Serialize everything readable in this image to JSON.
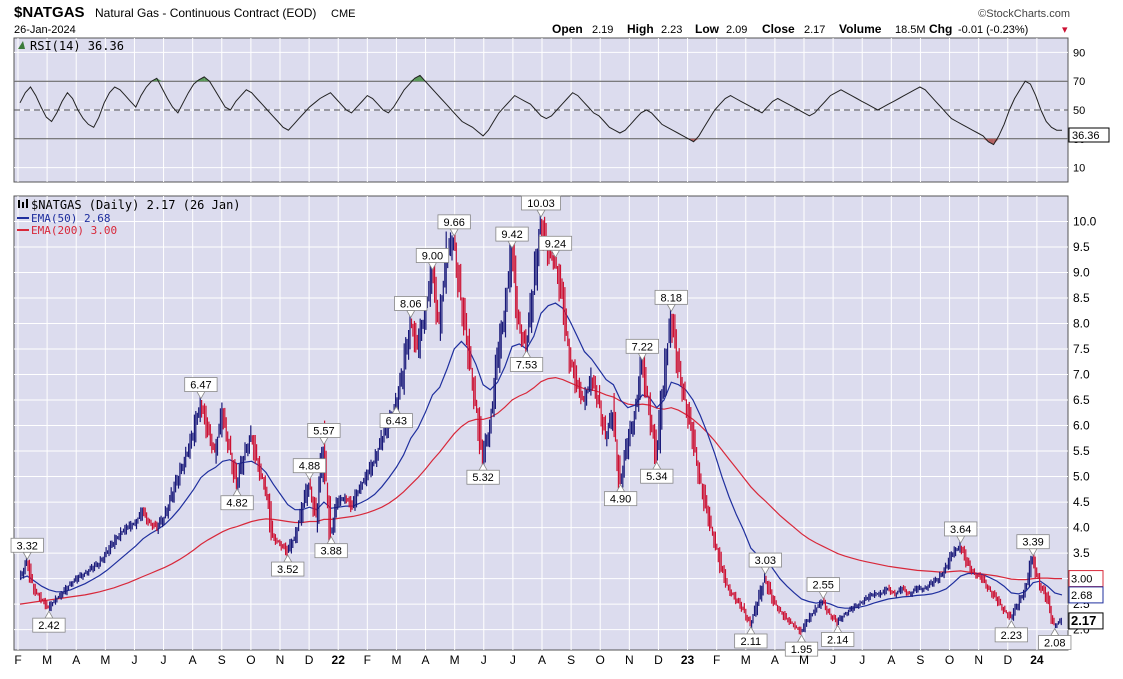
{
  "header": {
    "symbol": "$NATGAS",
    "description": "Natural Gas - Continuous Contract (EOD)",
    "exchange": "CME",
    "date": "26-Jan-2024",
    "watermark": "©StockCharts.com",
    "quote": {
      "open_label": "Open",
      "open": "2.19",
      "high_label": "High",
      "high": "2.23",
      "low_label": "Low",
      "low": "2.09",
      "close_label": "Close",
      "close": "2.17",
      "volume_label": "Volume",
      "volume": "18.5M",
      "chg_label": "Chg",
      "chg": "-0.01 (-0.23%)",
      "chg_arrow": "▾"
    }
  },
  "colors": {
    "panel_bg": "#dcdcee",
    "grid": "#ffffff",
    "price_line": "#1a1a1a",
    "up_bar": "#1a1a7a",
    "down_bar": "#cc1133",
    "ema50": "#1f2f9e",
    "ema200": "#d8283a",
    "rsi_line": "#222222",
    "rsi_overbought_fill": "#5a9a5a",
    "rsi_oversold_fill": "#b36060"
  },
  "chart_data": [
    {
      "type": "line",
      "panel": "RSI",
      "label": "RSI(14) 36.36",
      "last_value": 36.36,
      "ylim": [
        0,
        100
      ],
      "yticks": [
        10,
        30,
        50,
        70,
        90
      ],
      "reference_lines": [
        30,
        50,
        70
      ],
      "series": [
        {
          "name": "RSI(14)",
          "values": [
            55,
            62,
            66,
            60,
            52,
            45,
            42,
            48,
            56,
            62,
            58,
            50,
            44,
            40,
            38,
            45,
            55,
            62,
            66,
            64,
            60,
            56,
            52,
            60,
            66,
            70,
            72,
            65,
            58,
            52,
            48,
            55,
            62,
            68,
            71,
            73,
            70,
            64,
            58,
            52,
            50,
            56,
            60,
            64,
            62,
            58,
            54,
            50,
            46,
            42,
            38,
            36,
            40,
            44,
            48,
            52,
            55,
            58,
            60,
            62,
            58,
            54,
            50,
            48,
            52,
            56,
            60,
            58,
            54,
            50,
            48,
            52,
            58,
            64,
            68,
            72,
            74,
            70,
            66,
            62,
            58,
            54,
            50,
            46,
            42,
            40,
            38,
            35,
            32,
            36,
            42,
            48,
            52,
            56,
            60,
            58,
            56,
            54,
            50,
            46,
            44,
            46,
            50,
            54,
            58,
            62,
            60,
            56,
            52,
            48,
            46,
            42,
            38,
            36,
            34,
            36,
            40,
            44,
            48,
            50,
            48,
            44,
            40,
            38,
            36,
            34,
            32,
            30,
            28,
            32,
            38,
            44,
            50,
            54,
            58,
            60,
            58,
            56,
            54,
            52,
            50,
            48,
            52,
            56,
            58,
            56,
            54,
            52,
            50,
            48,
            46,
            48,
            52,
            56,
            60,
            62,
            64,
            62,
            60,
            58,
            56,
            54,
            52,
            50,
            52,
            54,
            56,
            58,
            60,
            62,
            64,
            66,
            64,
            60,
            56,
            52,
            48,
            44,
            42,
            40,
            38,
            36,
            34,
            32,
            28,
            26,
            32,
            40,
            50,
            58,
            64,
            70,
            68,
            60,
            50,
            42,
            38,
            36,
            36
          ]
        }
      ]
    },
    {
      "type": "line",
      "panel": "Price",
      "title": "$NATGAS (Daily) 2.17 (26 Jan)",
      "last_close": 2.17,
      "ylim": [
        1.6,
        10.5
      ],
      "yticks": [
        2.0,
        2.5,
        3.0,
        3.5,
        4.0,
        4.5,
        5.0,
        5.5,
        6.0,
        6.5,
        7.0,
        7.5,
        8.0,
        8.5,
        9.0,
        9.5,
        10.0
      ],
      "ytick_labels": [
        "2.0",
        "2.5",
        "3.0",
        "3.5",
        "4.0",
        "4.5",
        "5.0",
        "5.5",
        "6.0",
        "6.5",
        "7.0",
        "7.5",
        "8.0",
        "8.5",
        "9.0",
        "9.5",
        "10.0"
      ],
      "x_month_labels": [
        "F",
        "M",
        "A",
        "M",
        "J",
        "J",
        "A",
        "S",
        "O",
        "N",
        "D",
        "22",
        "F",
        "M",
        "A",
        "M",
        "J",
        "J",
        "A",
        "S",
        "O",
        "N",
        "D",
        "23",
        "F",
        "M",
        "A",
        "M",
        "J",
        "J",
        "A",
        "S",
        "O",
        "N",
        "D",
        "24"
      ],
      "series": [
        {
          "name": "$NATGAS",
          "values": [
            3.0,
            3.32,
            2.8,
            2.6,
            2.42,
            2.6,
            2.7,
            2.9,
            3.0,
            3.1,
            3.2,
            3.3,
            3.5,
            3.7,
            3.9,
            4.0,
            4.1,
            4.3,
            4.1,
            4.0,
            4.2,
            4.6,
            5.0,
            5.4,
            5.8,
            6.47,
            5.9,
            5.5,
            6.2,
            5.6,
            4.82,
            5.4,
            5.8,
            5.2,
            4.8,
            3.8,
            3.7,
            3.52,
            3.8,
            4.3,
            4.88,
            4.2,
            5.57,
            3.88,
            4.5,
            4.6,
            4.4,
            4.8,
            5.0,
            5.3,
            5.7,
            6.0,
            6.43,
            7.0,
            8.06,
            7.5,
            8.2,
            9.0,
            8.0,
            9.3,
            9.66,
            8.5,
            7.5,
            6.5,
            5.32,
            6.0,
            7.2,
            8.2,
            9.42,
            8.0,
            7.53,
            8.6,
            10.03,
            9.4,
            9.24,
            8.5,
            7.4,
            6.8,
            6.5,
            6.9,
            6.5,
            5.8,
            6.2,
            4.9,
            5.6,
            6.2,
            7.22,
            6.4,
            5.34,
            6.8,
            8.18,
            7.2,
            6.5,
            5.8,
            5.0,
            4.3,
            3.8,
            3.2,
            2.8,
            2.6,
            2.4,
            2.11,
            2.5,
            3.03,
            2.6,
            2.4,
            2.2,
            2.1,
            1.95,
            2.2,
            2.4,
            2.55,
            2.3,
            2.14,
            2.3,
            2.4,
            2.5,
            2.6,
            2.7,
            2.7,
            2.8,
            2.7,
            2.8,
            2.7,
            2.8,
            2.8,
            2.9,
            3.0,
            3.2,
            3.5,
            3.64,
            3.3,
            3.1,
            3.0,
            2.8,
            2.6,
            2.4,
            2.23,
            2.5,
            2.8,
            3.39,
            2.9,
            2.6,
            2.08,
            2.17
          ]
        },
        {
          "name": "EMA(50) 2.68",
          "values": [
            3.0,
            3.05,
            2.95,
            2.85,
            2.78,
            2.74,
            2.74,
            2.78,
            2.84,
            2.9,
            2.98,
            3.06,
            3.16,
            3.28,
            3.4,
            3.52,
            3.64,
            3.78,
            3.88,
            3.96,
            4.06,
            4.2,
            4.36,
            4.55,
            4.75,
            4.98,
            5.1,
            5.18,
            5.3,
            5.33,
            5.25,
            5.28,
            5.3,
            5.22,
            5.08,
            4.85,
            4.65,
            4.45,
            4.35,
            4.35,
            4.4,
            4.35,
            4.5,
            4.38,
            4.4,
            4.42,
            4.42,
            4.48,
            4.55,
            4.65,
            4.8,
            4.98,
            5.18,
            5.42,
            5.75,
            5.95,
            6.25,
            6.6,
            6.75,
            7.1,
            7.5,
            7.65,
            7.5,
            7.2,
            6.8,
            6.7,
            6.85,
            7.15,
            7.55,
            7.6,
            7.5,
            7.75,
            8.2,
            8.35,
            8.4,
            8.3,
            8.05,
            7.75,
            7.45,
            7.3,
            7.1,
            6.9,
            6.8,
            6.5,
            6.35,
            6.4,
            6.6,
            6.55,
            6.35,
            6.5,
            6.85,
            6.8,
            6.7,
            6.5,
            6.2,
            5.85,
            5.45,
            5.0,
            4.6,
            4.25,
            3.95,
            3.6,
            3.45,
            3.4,
            3.2,
            3.0,
            2.85,
            2.72,
            2.6,
            2.55,
            2.52,
            2.54,
            2.5,
            2.44,
            2.42,
            2.42,
            2.44,
            2.47,
            2.52,
            2.56,
            2.6,
            2.62,
            2.64,
            2.65,
            2.67,
            2.68,
            2.7,
            2.74,
            2.8,
            2.92,
            3.05,
            3.1,
            3.1,
            3.08,
            3.02,
            2.95,
            2.85,
            2.72,
            2.7,
            2.75,
            2.92,
            2.95,
            2.85,
            2.72,
            2.68
          ]
        },
        {
          "name": "EMA(200) 3.00",
          "values": [
            2.5,
            2.52,
            2.54,
            2.56,
            2.58,
            2.6,
            2.62,
            2.64,
            2.66,
            2.68,
            2.71,
            2.74,
            2.78,
            2.82,
            2.87,
            2.92,
            2.98,
            3.04,
            3.1,
            3.16,
            3.22,
            3.29,
            3.37,
            3.46,
            3.56,
            3.67,
            3.76,
            3.84,
            3.92,
            3.98,
            4.02,
            4.07,
            4.12,
            4.15,
            4.17,
            4.16,
            4.14,
            4.12,
            4.1,
            4.1,
            4.12,
            4.12,
            4.16,
            4.16,
            4.18,
            4.2,
            4.22,
            4.25,
            4.29,
            4.34,
            4.4,
            4.48,
            4.58,
            4.7,
            4.84,
            4.98,
            5.14,
            5.32,
            5.48,
            5.66,
            5.84,
            5.98,
            6.08,
            6.12,
            6.12,
            6.16,
            6.24,
            6.36,
            6.5,
            6.58,
            6.64,
            6.74,
            6.86,
            6.92,
            6.94,
            6.9,
            6.84,
            6.78,
            6.72,
            6.7,
            6.66,
            6.6,
            6.56,
            6.48,
            6.42,
            6.4,
            6.42,
            6.4,
            6.34,
            6.32,
            6.35,
            6.3,
            6.22,
            6.12,
            6.0,
            5.86,
            5.7,
            5.52,
            5.34,
            5.16,
            4.98,
            4.8,
            4.65,
            4.52,
            4.38,
            4.24,
            4.12,
            4.0,
            3.88,
            3.78,
            3.7,
            3.63,
            3.56,
            3.49,
            3.44,
            3.4,
            3.36,
            3.33,
            3.3,
            3.27,
            3.24,
            3.22,
            3.2,
            3.18,
            3.16,
            3.15,
            3.14,
            3.13,
            3.13,
            3.14,
            3.15,
            3.13,
            3.11,
            3.09,
            3.07,
            3.05,
            3.02,
            2.99,
            2.98,
            2.98,
            3.0,
            3.01,
            3.01,
            3.0,
            3.0
          ]
        }
      ],
      "annotations": [
        {
          "label": "3.32",
          "i": 1,
          "v": 3.32,
          "pos": "above"
        },
        {
          "label": "2.42",
          "i": 4,
          "v": 2.42,
          "pos": "below"
        },
        {
          "label": "6.47",
          "i": 25,
          "v": 6.47,
          "pos": "above"
        },
        {
          "label": "4.82",
          "i": 30,
          "v": 4.82,
          "pos": "below"
        },
        {
          "label": "3.52",
          "i": 37,
          "v": 3.52,
          "pos": "below"
        },
        {
          "label": "4.88",
          "i": 40,
          "v": 4.88,
          "pos": "above"
        },
        {
          "label": "5.57",
          "i": 42,
          "v": 5.57,
          "pos": "above"
        },
        {
          "label": "3.88",
          "i": 43,
          "v": 3.88,
          "pos": "below"
        },
        {
          "label": "6.43",
          "i": 52,
          "v": 6.43,
          "pos": "below"
        },
        {
          "label": "8.06",
          "i": 54,
          "v": 8.06,
          "pos": "above"
        },
        {
          "label": "9.00",
          "i": 57,
          "v": 9.0,
          "pos": "above"
        },
        {
          "label": "9.66",
          "i": 60,
          "v": 9.66,
          "pos": "above"
        },
        {
          "label": "5.32",
          "i": 64,
          "v": 5.32,
          "pos": "below"
        },
        {
          "label": "9.42",
          "i": 68,
          "v": 9.42,
          "pos": "above"
        },
        {
          "label": "7.53",
          "i": 70,
          "v": 7.53,
          "pos": "below"
        },
        {
          "label": "10.03",
          "i": 72,
          "v": 10.03,
          "pos": "above"
        },
        {
          "label": "9.24",
          "i": 74,
          "v": 9.24,
          "pos": "above"
        },
        {
          "label": "4.90",
          "i": 83,
          "v": 4.9,
          "pos": "below"
        },
        {
          "label": "7.22",
          "i": 86,
          "v": 7.22,
          "pos": "above"
        },
        {
          "label": "5.34",
          "i": 88,
          "v": 5.34,
          "pos": "below"
        },
        {
          "label": "8.18",
          "i": 90,
          "v": 8.18,
          "pos": "above"
        },
        {
          "label": "2.11",
          "i": 101,
          "v": 2.11,
          "pos": "below"
        },
        {
          "label": "3.03",
          "i": 103,
          "v": 3.03,
          "pos": "above"
        },
        {
          "label": "1.95",
          "i": 108,
          "v": 1.95,
          "pos": "below"
        },
        {
          "label": "2.55",
          "i": 111,
          "v": 2.55,
          "pos": "above"
        },
        {
          "label": "2.14",
          "i": 113,
          "v": 2.14,
          "pos": "below"
        },
        {
          "label": "3.64",
          "i": 130,
          "v": 3.64,
          "pos": "above"
        },
        {
          "label": "2.23",
          "i": 137,
          "v": 2.23,
          "pos": "below"
        },
        {
          "label": "3.39",
          "i": 140,
          "v": 3.39,
          "pos": "above"
        },
        {
          "label": "2.08",
          "i": 143,
          "v": 2.08,
          "pos": "below"
        }
      ],
      "right_axis_tags": [
        {
          "label": "3.00",
          "v": 3.0,
          "series": "EMA(200) 3.00"
        },
        {
          "label": "2.68",
          "v": 2.68,
          "series": "EMA(50) 2.68"
        },
        {
          "label": "2.17",
          "v": 2.17,
          "series": "$NATGAS"
        }
      ]
    }
  ],
  "legend": {
    "price": "$NATGAS (Daily) 2.17 (26 Jan)",
    "ema50": "EMA(50) 2.68",
    "ema200": "EMA(200) 3.00"
  },
  "rsi_tag": "36.36"
}
